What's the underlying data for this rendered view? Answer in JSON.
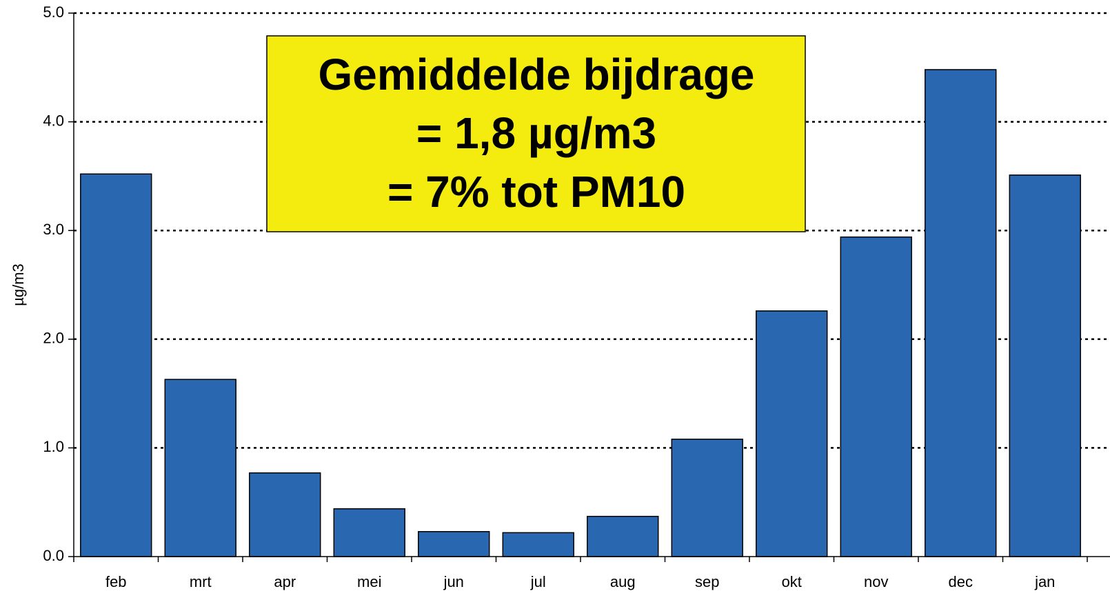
{
  "chart_data": {
    "type": "bar",
    "y_label": "µg/m3",
    "categories": [
      "feb",
      "mrt",
      "apr",
      "mei",
      "jun",
      "jul",
      "aug",
      "sep",
      "okt",
      "nov",
      "dec",
      "jan"
    ],
    "values": [
      3.52,
      1.63,
      0.77,
      0.44,
      0.23,
      0.22,
      0.37,
      1.08,
      2.26,
      2.94,
      4.48,
      3.51
    ],
    "color": "#2a67b1",
    "ylim": [
      0,
      5
    ],
    "yticks": [
      {
        "value": 0,
        "label": "0.0"
      },
      {
        "value": 1,
        "label": "1.0"
      },
      {
        "value": 2,
        "label": "2.0"
      },
      {
        "value": 3,
        "label": "3.0"
      },
      {
        "value": 4,
        "label": "4.0"
      },
      {
        "value": 5,
        "label": "5.0"
      }
    ],
    "grid": true,
    "annotation": [
      "Gemiddelde bijdrage",
      "= 1,8 µg/m3",
      "= 7% tot PM10"
    ]
  }
}
